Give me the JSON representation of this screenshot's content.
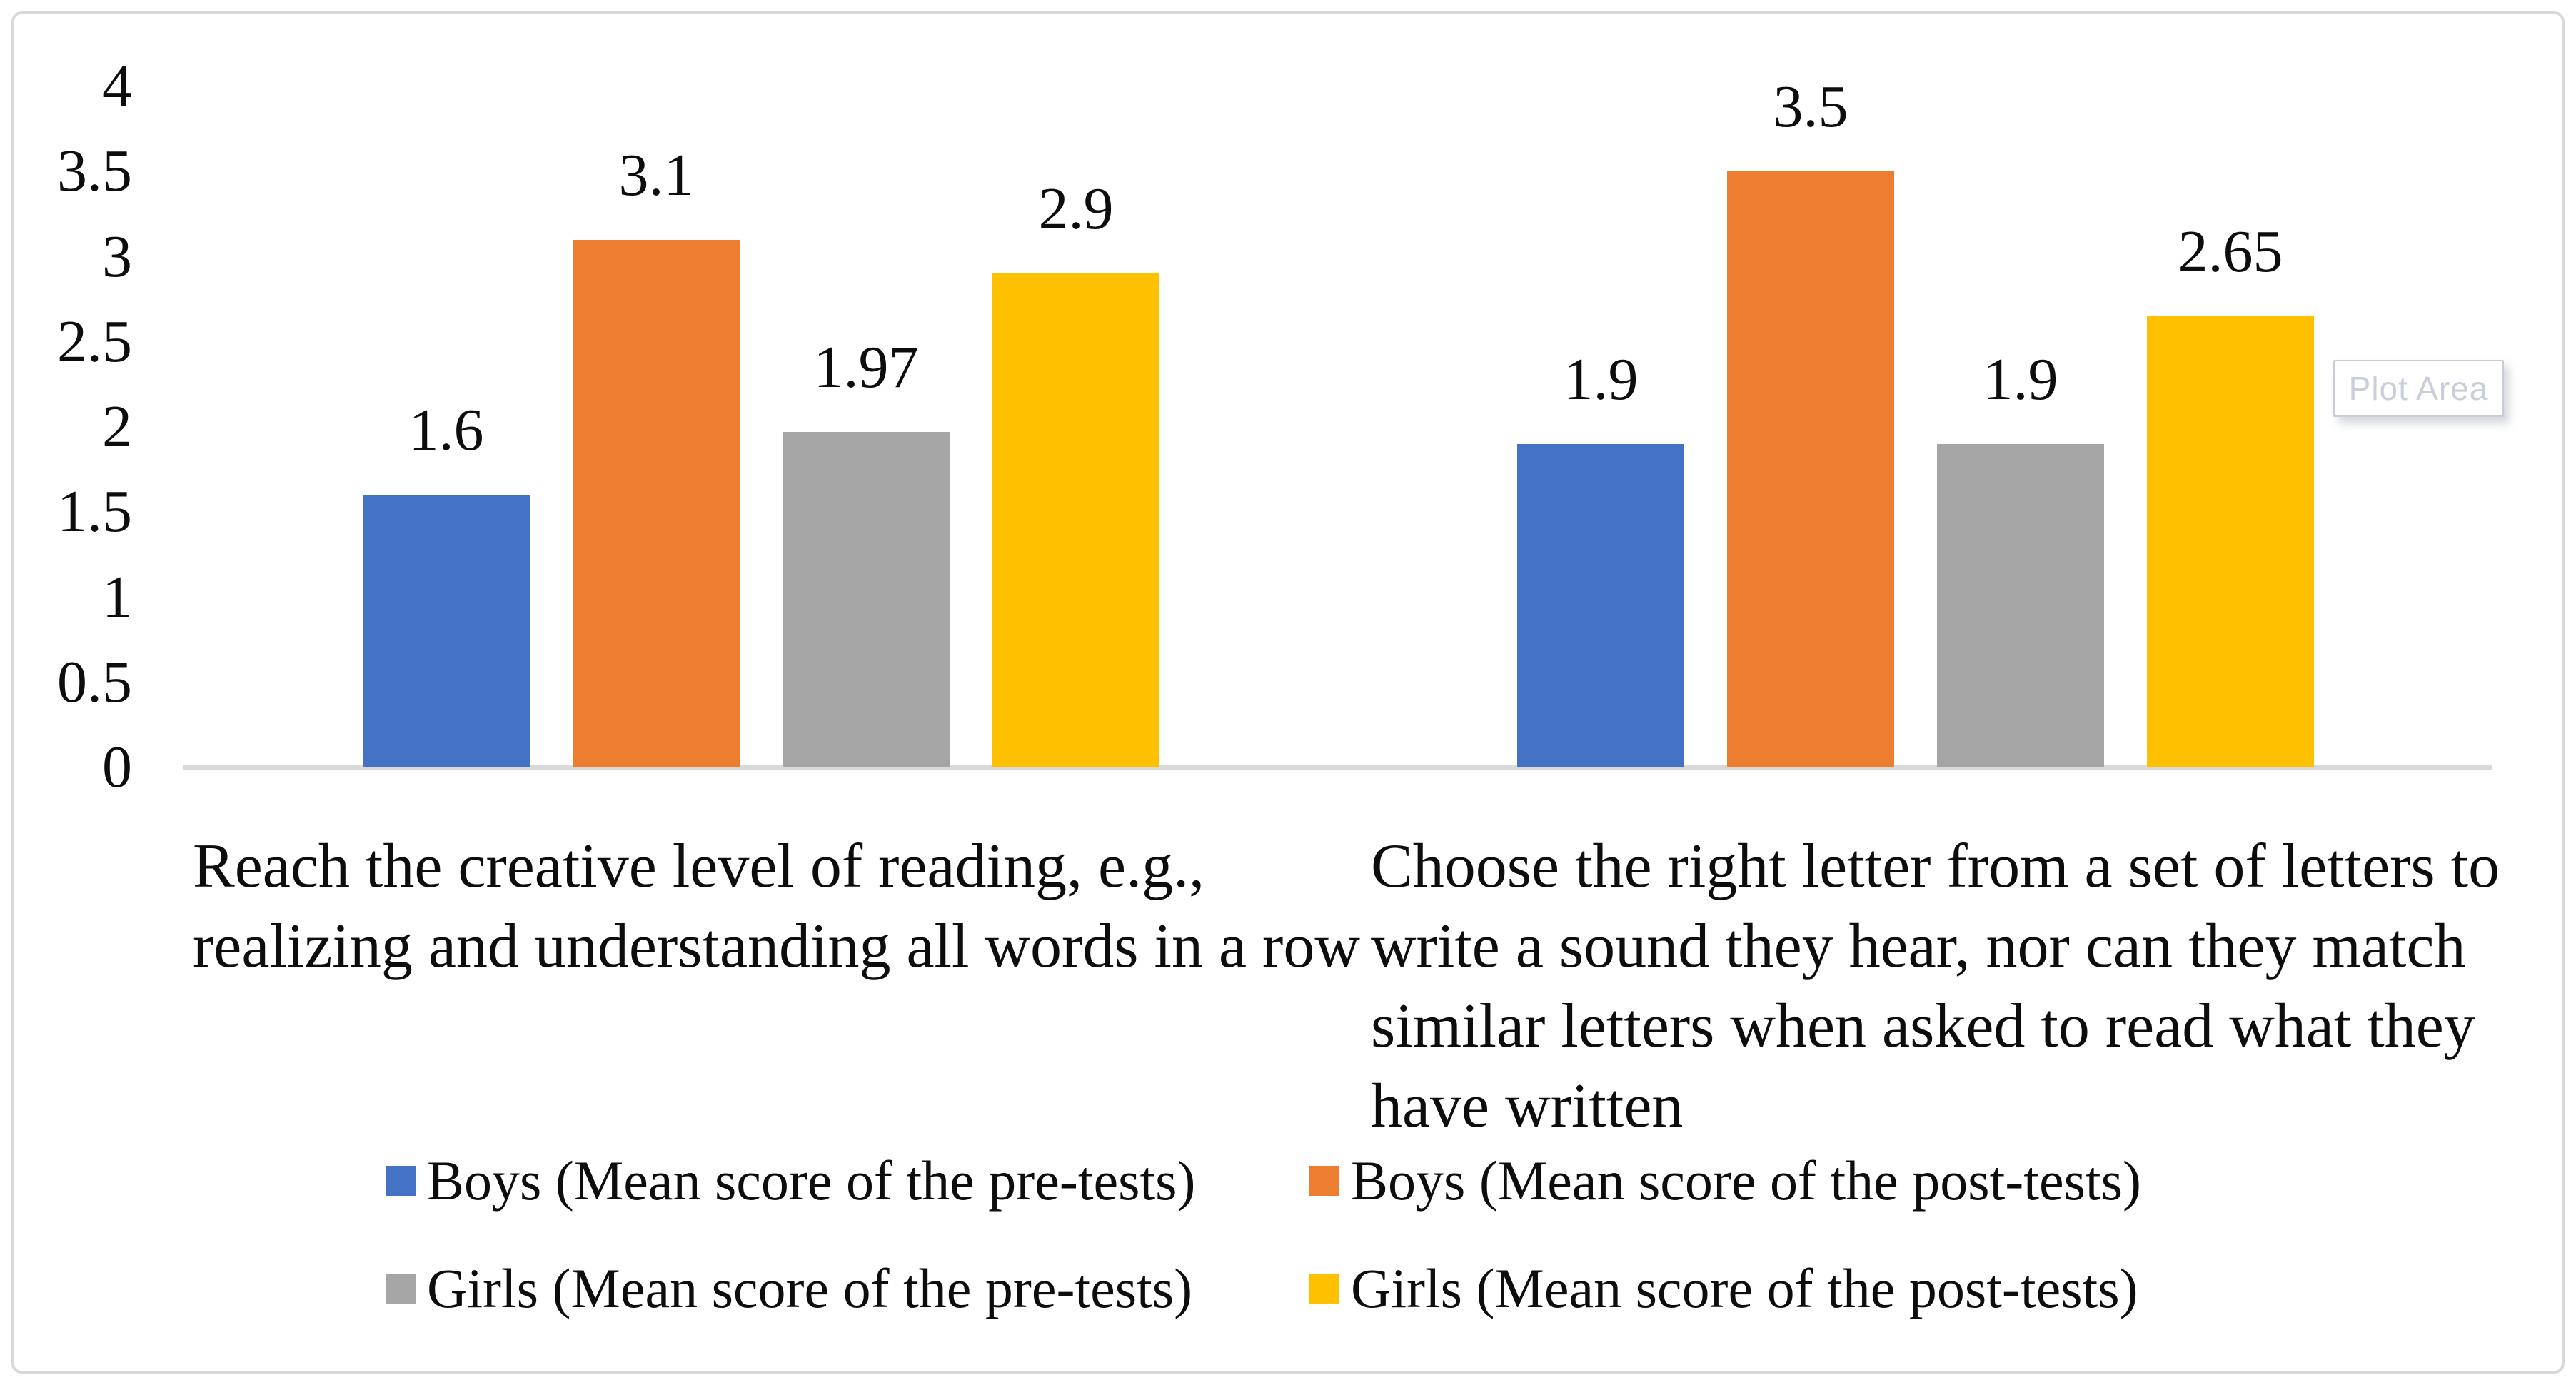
{
  "tooltip": {
    "label": "Plot Area"
  },
  "colors": {
    "axis_line": "#d9d9d9",
    "outer_border": "#d9d9d9",
    "text": "#0d0d0d",
    "tooltip_text": "#c9ceda",
    "tooltip_border": "#c8ccd4"
  },
  "chart_data": {
    "type": "bar",
    "title": "",
    "xlabel": "",
    "ylabel": "",
    "ylim": [
      0,
      4
    ],
    "ytick_step": 0.5,
    "yticks": [
      "4",
      "3.5",
      "3",
      "2.5",
      "2",
      "1.5",
      "1",
      "0.5",
      "0"
    ],
    "grid": false,
    "legend_position": "bottom",
    "categories": [
      "Reach the creative level of reading, e.g.,\nrealizing and understanding all words in a row",
      "Choose the right letter from a set of letters to\nwrite a sound they hear, nor can they match\nsimilar letters when asked to read what they\nhave written"
    ],
    "series": [
      {
        "name": "Boys (Mean score of the pre-tests)",
        "color": "#4472C4",
        "values": [
          1.6,
          1.9
        ],
        "labels": [
          "1.6",
          "1.9"
        ]
      },
      {
        "name": "Boys (Mean score of the post-tests)",
        "color": "#ED7D31",
        "values": [
          3.1,
          3.5
        ],
        "labels": [
          "3.1",
          "3.5"
        ]
      },
      {
        "name": "Girls (Mean score of the pre-tests)",
        "color": "#A5A5A5",
        "values": [
          1.97,
          1.9
        ],
        "labels": [
          "1.97",
          "1.9"
        ]
      },
      {
        "name": "Girls (Mean score of the post-tests)",
        "color": "#FFC000",
        "values": [
          2.9,
          2.65
        ],
        "labels": [
          "2.9",
          "2.65"
        ]
      }
    ]
  }
}
